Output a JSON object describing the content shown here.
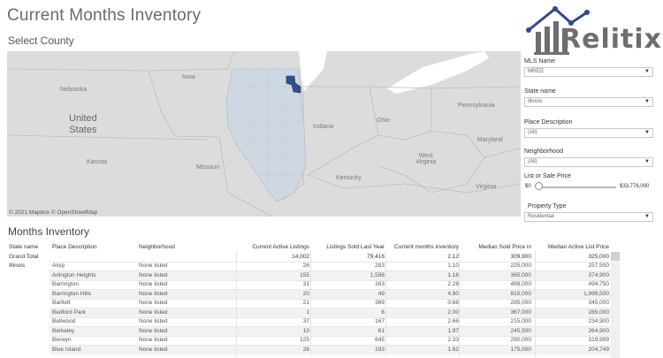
{
  "page": {
    "title": "Current Months Inventory",
    "map_section": "Select County",
    "table_section": "Months Inventory"
  },
  "logo": {
    "text": "Relitix"
  },
  "map": {
    "credit": "© 2021 Mapbox © OpenStreetMap",
    "labels": {
      "nebraska": "Nebraska",
      "iowa": "Iowa",
      "united_states": "United\nStates",
      "kansas": "Kansas",
      "missouri": "Missouri",
      "indiana": "Indiana",
      "ohio": "Ohio",
      "pennsylvania": "Pennsylvania",
      "west_virginia": "West\nVirginia",
      "maryland": "Maryland",
      "kentucky": "Kentucky",
      "virginia": "Virginia"
    },
    "colors": {
      "land": "#dcdcdc",
      "water": "#ffffff",
      "illinois": "#cfd8e2",
      "selected": "#34508a"
    }
  },
  "filters": {
    "mls": {
      "label": "MLS Name",
      "value": "MRED"
    },
    "state": {
      "label": "State name",
      "value": "Illinois"
    },
    "place": {
      "label": "Place Description",
      "value": "(All)"
    },
    "neighborhood": {
      "label": "Neighborhood",
      "value": "(All)"
    },
    "price": {
      "label": "List or Sale Price",
      "min": "$0",
      "max": "$33,776,000",
      "level": 0.0
    },
    "property": {
      "label": "Property Type",
      "value": "Residential"
    }
  },
  "table": {
    "headers": {
      "state": "State name",
      "place": "Place Description",
      "neighborhood": "Neighborhood",
      "active": "Current Active Listings",
      "sold": "Listings Sold Last Year",
      "months": "Current months inventory",
      "median_sold": "Median Sold Price in",
      "median_list": "Median Active List Price"
    },
    "grand": {
      "label": "Grand Total",
      "active": "14,002",
      "sold": "79,416",
      "months": "2.12",
      "median_sold": "309,900",
      "median_list": "325,000"
    },
    "state_value": "Illinois",
    "rows": [
      {
        "place": "Alsip",
        "neighborhood": "None listed",
        "active": "26",
        "sold": "283",
        "months": "1.10",
        "median_sold": "225,000",
        "median_list": "257,500"
      },
      {
        "place": "Arlington Heights",
        "neighborhood": "None listed",
        "active": "155",
        "sold": "1,598",
        "months": "1.16",
        "median_sold": "365,000",
        "median_list": "374,900"
      },
      {
        "place": "Barrington",
        "neighborhood": "None listed",
        "active": "31",
        "sold": "163",
        "months": "2.28",
        "median_sold": "489,000",
        "median_list": "494,750"
      },
      {
        "place": "Barrington Hills",
        "neighborhood": "None listed",
        "active": "20",
        "sold": "49",
        "months": "4.90",
        "median_sold": "815,000",
        "median_list": "1,999,500"
      },
      {
        "place": "Bartlett",
        "neighborhood": "None listed",
        "active": "21",
        "sold": "369",
        "months": "0.68",
        "median_sold": "285,000",
        "median_list": "345,000"
      },
      {
        "place": "Bedford Park",
        "neighborhood": "None listed",
        "active": "1",
        "sold": "6",
        "months": "2.00",
        "median_sold": "367,000",
        "median_list": "289,000"
      },
      {
        "place": "Bellwood",
        "neighborhood": "None listed",
        "active": "37",
        "sold": "167",
        "months": "2.66",
        "median_sold": "215,000",
        "median_list": "234,900"
      },
      {
        "place": "Berkeley",
        "neighborhood": "None listed",
        "active": "10",
        "sold": "61",
        "months": "1.97",
        "median_sold": "245,500",
        "median_list": "264,900"
      },
      {
        "place": "Berwyn",
        "neighborhood": "None listed",
        "active": "125",
        "sold": "645",
        "months": "2.33",
        "median_sold": "290,000",
        "median_list": "319,999"
      },
      {
        "place": "Blue Island",
        "neighborhood": "None listed",
        "active": "26",
        "sold": "193",
        "months": "1.62",
        "median_sold": "175,000",
        "median_list": "204,749"
      }
    ]
  }
}
